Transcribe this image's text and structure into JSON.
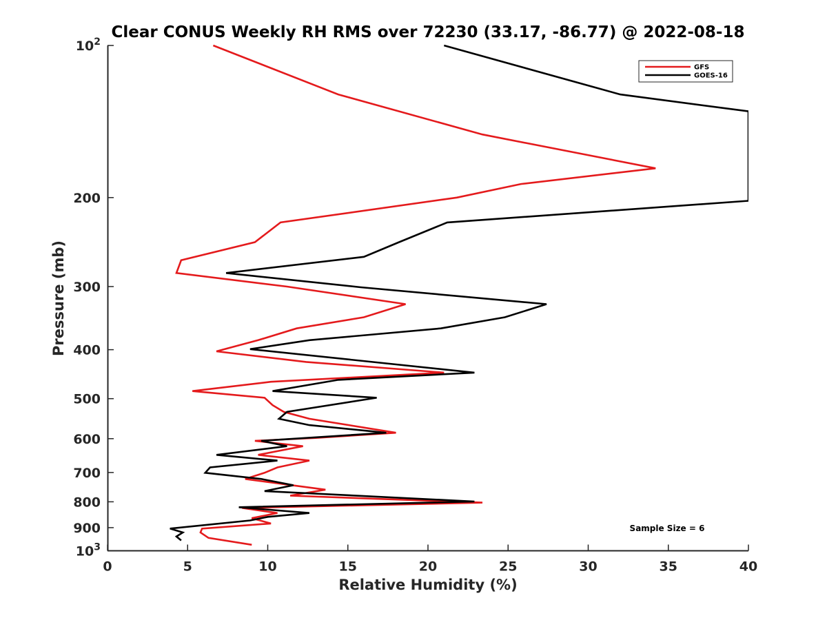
{
  "chart_data": {
    "type": "line",
    "title": "Clear CONUS Weekly RH RMS over 72230 (33.17, -86.77) @ 2022-08-18",
    "xlabel": "Relative Humidity (%)",
    "ylabel": "Pressure (mb)",
    "xlim": [
      0,
      40
    ],
    "ylim": [
      100,
      1000
    ],
    "yscale": "log",
    "y_reversed": true,
    "grid": false,
    "x_ticks": [
      0,
      5,
      10,
      15,
      20,
      25,
      30,
      35,
      40
    ],
    "x_tick_labels": [
      "0",
      "5",
      "10",
      "15",
      "20",
      "25",
      "30",
      "35",
      "40"
    ],
    "y_ticks": [
      100,
      200,
      300,
      400,
      500,
      600,
      700,
      800,
      900,
      1000
    ],
    "y_tick_labels": [
      {
        "base": "10",
        "exp": "2"
      },
      {
        "base": "200"
      },
      {
        "base": "300"
      },
      {
        "base": "400"
      },
      {
        "base": "500"
      },
      {
        "base": "600"
      },
      {
        "base": "700"
      },
      {
        "base": "800"
      },
      {
        "base": "900"
      },
      {
        "base": "10",
        "exp": "3"
      }
    ],
    "legend_position": "top-right",
    "series": [
      {
        "name": "GFS",
        "color": "#e41a1c",
        "points": [
          [
            6.6,
            100
          ],
          [
            14.4,
            125
          ],
          [
            23.4,
            150
          ],
          [
            34.2,
            175
          ],
          [
            25.8,
            188
          ],
          [
            21.8,
            200
          ],
          [
            10.8,
            224
          ],
          [
            9.2,
            245
          ],
          [
            4.6,
            266
          ],
          [
            4.3,
            282
          ],
          [
            11.2,
            300
          ],
          [
            18.6,
            325
          ],
          [
            16.0,
            345
          ],
          [
            11.8,
            363
          ],
          [
            9.4,
            383
          ],
          [
            6.8,
            403
          ],
          [
            12.4,
            423
          ],
          [
            21.0,
            444
          ],
          [
            10.2,
            463
          ],
          [
            5.3,
            483
          ],
          [
            9.8,
            498
          ],
          [
            10.3,
            515
          ],
          [
            11.0,
            531
          ],
          [
            12.6,
            548
          ],
          [
            18.0,
            584
          ],
          [
            13.0,
            598
          ],
          [
            9.2,
            606
          ],
          [
            12.2,
            621
          ],
          [
            9.4,
            646
          ],
          [
            12.6,
            663
          ],
          [
            10.6,
            684
          ],
          [
            9.8,
            701
          ],
          [
            8.6,
            721
          ],
          [
            13.6,
            757
          ],
          [
            11.4,
            778
          ],
          [
            23.4,
            803
          ],
          [
            8.4,
            823
          ],
          [
            10.6,
            842
          ],
          [
            9.0,
            862
          ],
          [
            10.2,
            883
          ],
          [
            5.9,
            904
          ],
          [
            5.8,
            920
          ],
          [
            6.3,
            943
          ],
          [
            9.0,
            973
          ]
        ]
      },
      {
        "name": "GOES-16",
        "color": "#000000",
        "points": [
          [
            21.0,
            100
          ],
          [
            32.0,
            125
          ],
          [
            40.0,
            135
          ],
          [
            40.0,
            203
          ],
          [
            21.2,
            224
          ],
          [
            18.2,
            245
          ],
          [
            16.0,
            262
          ],
          [
            7.4,
            282
          ],
          [
            15.8,
            301
          ],
          [
            27.4,
            325
          ],
          [
            24.8,
            345
          ],
          [
            20.8,
            363
          ],
          [
            12.6,
            383
          ],
          [
            8.9,
            399
          ],
          [
            22.9,
            444
          ],
          [
            14.4,
            459
          ],
          [
            10.3,
            483
          ],
          [
            16.8,
            498
          ],
          [
            11.2,
            531
          ],
          [
            10.7,
            548
          ],
          [
            12.6,
            564
          ],
          [
            17.4,
            584
          ],
          [
            9.6,
            606
          ],
          [
            11.2,
            621
          ],
          [
            6.8,
            646
          ],
          [
            10.6,
            663
          ],
          [
            6.4,
            684
          ],
          [
            6.1,
            701
          ],
          [
            9.6,
            721
          ],
          [
            11.6,
            742
          ],
          [
            9.8,
            762
          ],
          [
            22.9,
            799
          ],
          [
            8.2,
            820
          ],
          [
            12.6,
            842
          ],
          [
            10.0,
            857
          ],
          [
            8.9,
            871
          ],
          [
            3.9,
            904
          ],
          [
            4.7,
            920
          ],
          [
            4.3,
            937
          ],
          [
            4.6,
            954
          ]
        ]
      }
    ],
    "annotations": [
      {
        "text": "Sample Size = 6",
        "position": "bottom-right"
      }
    ]
  }
}
